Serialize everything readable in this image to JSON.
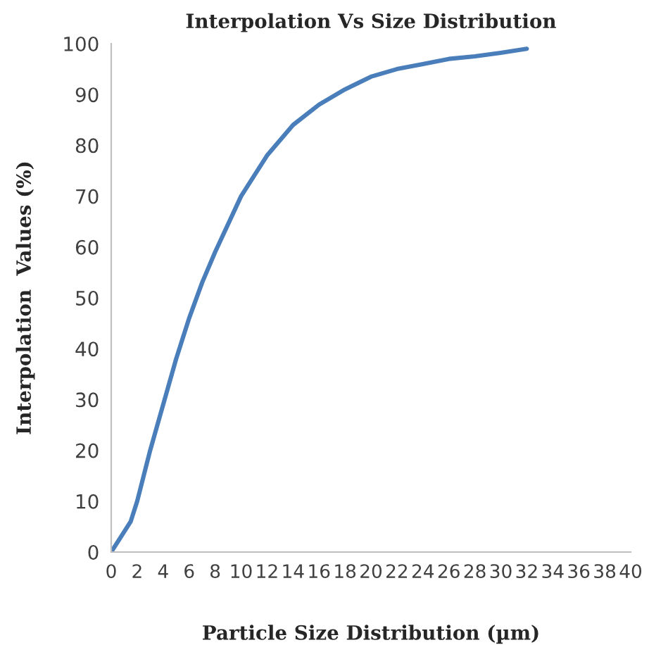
{
  "chart_data": {
    "type": "line",
    "title": "Interpolation Vs Size Distribution",
    "xlabel": "Particle Size Distribution (µm)",
    "ylabel": "Interpolation  Values (%)",
    "x": [
      0,
      1.5,
      2,
      3,
      4,
      5,
      6,
      7,
      8,
      10,
      12,
      14,
      16,
      18,
      20,
      22,
      24,
      26,
      28,
      30,
      32
    ],
    "series": [
      {
        "color": "#4a7ebb",
        "values": [
          0,
          6,
          10,
          20,
          29,
          38,
          46,
          53,
          59,
          70,
          78,
          84,
          88,
          91,
          93.5,
          95,
          96,
          97,
          97.5,
          98.2,
          99
        ]
      }
    ],
    "xlim": [
      0,
      40
    ],
    "xticks": [
      0,
      2,
      4,
      6,
      8,
      10,
      12,
      14,
      16,
      18,
      20,
      22,
      24,
      26,
      28,
      30,
      32,
      34,
      36,
      38,
      40
    ],
    "ylim": [
      0,
      100
    ],
    "yticks": [
      0,
      10,
      20,
      30,
      40,
      50,
      60,
      70,
      80,
      90,
      100
    ],
    "grid": false,
    "legend": false,
    "marker": "none",
    "line_style": "solid"
  }
}
